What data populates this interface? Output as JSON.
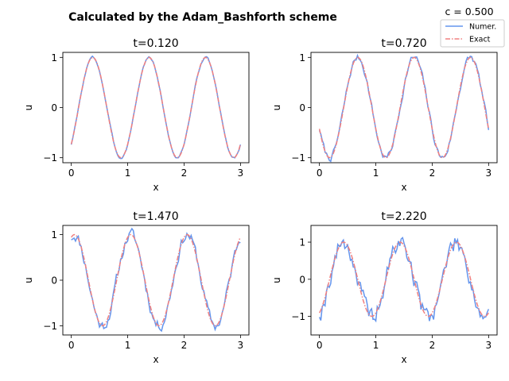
{
  "suptitle": "Calculated by the Adam_Bashforth scheme",
  "legend_header": "c = 0.500",
  "legend": [
    {
      "label": "Numer.",
      "color": "#6495ed",
      "style": "solid"
    },
    {
      "label": "Exact",
      "color": "#f08080",
      "style": "dashdot"
    }
  ],
  "chart_data": [
    {
      "type": "line",
      "title": "t=0.120",
      "xlabel": "x",
      "ylabel": "u",
      "xlim": [
        -0.15,
        3.15
      ],
      "ylim": [
        -1.1,
        1.1
      ],
      "xticks": [
        0,
        1,
        2,
        3
      ],
      "yticks": [
        -1,
        0,
        1
      ],
      "noise": 0.02,
      "seed": 3,
      "series": [
        {
          "name": "Numer.",
          "style": "solid",
          "color": "#6495ed",
          "x": [],
          "values": []
        },
        {
          "name": "Exact",
          "style": "dashdot",
          "color": "#f08080",
          "phase": 0.12
        }
      ]
    },
    {
      "type": "line",
      "title": "t=0.720",
      "xlabel": "x",
      "ylabel": "u",
      "xlim": [
        -0.15,
        3.15
      ],
      "ylim": [
        -1.1,
        1.1
      ],
      "xticks": [
        0,
        1,
        2,
        3
      ],
      "yticks": [
        -1,
        0,
        1
      ],
      "noise": 0.06,
      "seed": 7,
      "series": [
        {
          "name": "Numer.",
          "style": "solid",
          "color": "#6495ed"
        },
        {
          "name": "Exact",
          "style": "dashdot",
          "color": "#f08080",
          "phase": 0.72
        }
      ]
    },
    {
      "type": "line",
      "title": "t=1.470",
      "xlabel": "x",
      "ylabel": "u",
      "xlim": [
        -0.15,
        3.15
      ],
      "ylim": [
        -1.2,
        1.2
      ],
      "xticks": [
        0,
        1,
        2,
        3
      ],
      "yticks": [
        -1,
        0,
        1
      ],
      "noise": 0.11,
      "seed": 11,
      "series": [
        {
          "name": "Numer.",
          "style": "solid",
          "color": "#6495ed"
        },
        {
          "name": "Exact",
          "style": "dashdot",
          "color": "#f08080",
          "phase": 1.47
        }
      ]
    },
    {
      "type": "line",
      "title": "t=2.220",
      "xlabel": "x",
      "ylabel": "u",
      "xlim": [
        -0.15,
        3.15
      ],
      "ylim": [
        -1.5,
        1.45
      ],
      "xticks": [
        0,
        1,
        2,
        3
      ],
      "yticks": [
        -1,
        0,
        1
      ],
      "noise": 0.22,
      "seed": 19,
      "series": [
        {
          "name": "Numer.",
          "style": "solid",
          "color": "#6495ed"
        },
        {
          "name": "Exact",
          "style": "dashdot",
          "color": "#f08080",
          "phase": 2.22
        }
      ]
    }
  ]
}
